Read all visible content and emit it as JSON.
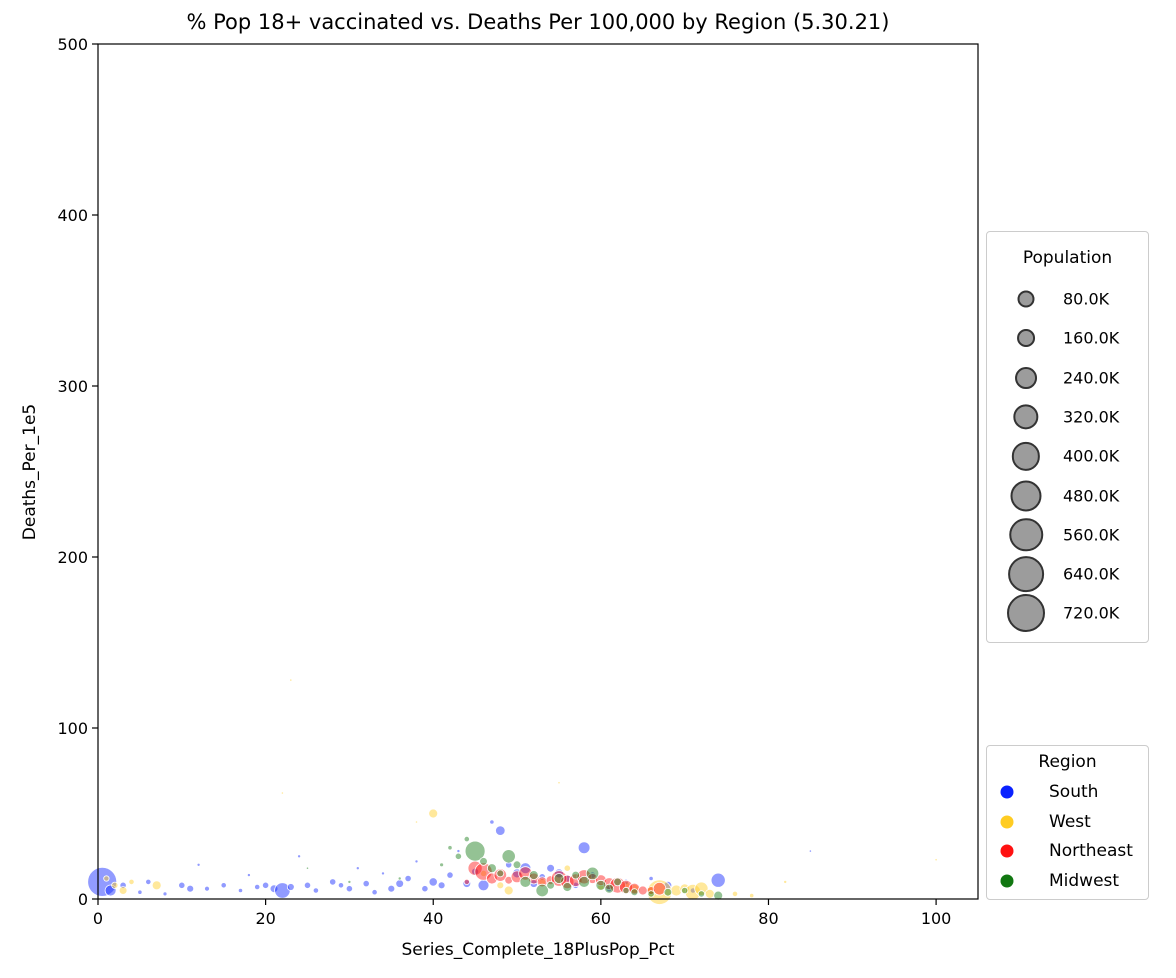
{
  "chart_data": {
    "type": "scatter",
    "title": "% Pop 18+ vaccinated vs. Deaths Per 100,000 by Region (5.30.21)",
    "xlabel": "Series_Complete_18PlusPop_Pct",
    "ylabel": "Deaths_Per_1e5",
    "xlim": [
      0,
      105
    ],
    "ylim": [
      0,
      500
    ],
    "xticks": [
      0,
      20,
      40,
      60,
      80,
      100
    ],
    "yticks": [
      0,
      100,
      200,
      300,
      400,
      500
    ],
    "grid": false,
    "size_legend": {
      "title": "Population",
      "placement": "right",
      "entries": [
        "80.0K",
        "160.0K",
        "240.0K",
        "320.0K",
        "400.0K",
        "480.0K",
        "560.0K",
        "640.0K",
        "720.0K"
      ],
      "values": [
        80000,
        160000,
        240000,
        320000,
        400000,
        480000,
        560000,
        640000,
        720000
      ]
    },
    "region_legend": {
      "title": "Region",
      "placement": "lower right outside",
      "entries": [
        {
          "name": "South",
          "color": "#0a22ff"
        },
        {
          "name": "West",
          "color": "#ffcc22"
        },
        {
          "name": "Northeast",
          "color": "#ff1111"
        },
        {
          "name": "Midwest",
          "color": "#117711"
        }
      ]
    },
    "series": [
      {
        "name": "South",
        "color": "#0a22ff",
        "points": [
          [
            0.5,
            10,
            420000
          ],
          [
            1.5,
            5,
            60000
          ],
          [
            3,
            8,
            20000
          ],
          [
            6,
            10,
            15000
          ],
          [
            8,
            3,
            8000
          ],
          [
            10,
            8,
            20000
          ],
          [
            11,
            6,
            25000
          ],
          [
            13,
            6,
            12000
          ],
          [
            15,
            8,
            15000
          ],
          [
            17,
            5,
            10000
          ],
          [
            19,
            7,
            15000
          ],
          [
            20,
            8,
            20000
          ],
          [
            21,
            6,
            30000
          ],
          [
            22,
            5,
            120000
          ],
          [
            23,
            7,
            25000
          ],
          [
            25,
            8,
            20000
          ],
          [
            26,
            5,
            15000
          ],
          [
            28,
            10,
            20000
          ],
          [
            29,
            8,
            15000
          ],
          [
            30,
            6,
            20000
          ],
          [
            32,
            9,
            20000
          ],
          [
            33,
            4,
            15000
          ],
          [
            35,
            6,
            25000
          ],
          [
            36,
            9,
            30000
          ],
          [
            37,
            12,
            20000
          ],
          [
            39,
            6,
            20000
          ],
          [
            40,
            10,
            35000
          ],
          [
            41,
            8,
            25000
          ],
          [
            42,
            14,
            20000
          ],
          [
            44,
            9,
            30000
          ],
          [
            45,
            16,
            25000
          ],
          [
            46,
            8,
            60000
          ],
          [
            47,
            45,
            10000
          ],
          [
            48,
            40,
            45000
          ],
          [
            49,
            20,
            20000
          ],
          [
            50,
            15,
            40000
          ],
          [
            51,
            18,
            60000
          ],
          [
            52,
            9,
            30000
          ],
          [
            53,
            13,
            20000
          ],
          [
            54,
            18,
            30000
          ],
          [
            55,
            15,
            40000
          ],
          [
            56,
            12,
            25000
          ],
          [
            57,
            8,
            20000
          ],
          [
            58,
            30,
            70000
          ],
          [
            59,
            14,
            20000
          ],
          [
            61,
            6,
            20000
          ],
          [
            63,
            10,
            15000
          ],
          [
            66,
            12,
            10000
          ],
          [
            68,
            8,
            30000
          ],
          [
            71,
            5,
            15000
          ],
          [
            74,
            11,
            100000
          ],
          [
            85,
            28,
            3000
          ],
          [
            5,
            4,
            10000
          ],
          [
            12,
            20,
            5000
          ],
          [
            18,
            14,
            5000
          ],
          [
            24,
            25,
            5000
          ],
          [
            31,
            18,
            5000
          ],
          [
            34,
            15,
            5000
          ],
          [
            38,
            22,
            5000
          ],
          [
            43,
            28,
            5000
          ]
        ]
      },
      {
        "name": "West",
        "color": "#ffcc22",
        "points": [
          [
            1,
            12,
            15000
          ],
          [
            2,
            8,
            20000
          ],
          [
            3,
            5,
            30000
          ],
          [
            4,
            10,
            15000
          ],
          [
            7,
            8,
            40000
          ],
          [
            40,
            50,
            40000
          ],
          [
            46,
            15,
            20000
          ],
          [
            48,
            8,
            25000
          ],
          [
            49,
            5,
            40000
          ],
          [
            53,
            10,
            25000
          ],
          [
            56,
            18,
            20000
          ],
          [
            60,
            7,
            20000
          ],
          [
            63,
            8,
            30000
          ],
          [
            64,
            6,
            40000
          ],
          [
            66,
            5,
            50000
          ],
          [
            67,
            4,
            300000
          ],
          [
            69,
            5,
            60000
          ],
          [
            70,
            6,
            45000
          ],
          [
            71,
            4,
            120000
          ],
          [
            72,
            6,
            90000
          ],
          [
            73,
            3,
            40000
          ],
          [
            76,
            3,
            15000
          ],
          [
            78,
            2,
            10000
          ],
          [
            82,
            10,
            5000
          ],
          [
            100,
            23,
            3000
          ],
          [
            23,
            128,
            3000
          ],
          [
            22,
            62,
            3000
          ],
          [
            38,
            45,
            3000
          ],
          [
            55,
            68,
            3000
          ]
        ]
      },
      {
        "name": "Northeast",
        "color": "#ff1111",
        "points": [
          [
            44,
            10,
            15000
          ],
          [
            45,
            18,
            100000
          ],
          [
            46,
            16,
            150000
          ],
          [
            47,
            12,
            60000
          ],
          [
            48,
            14,
            80000
          ],
          [
            49,
            11,
            30000
          ],
          [
            50,
            13,
            70000
          ],
          [
            51,
            15,
            90000
          ],
          [
            52,
            12,
            60000
          ],
          [
            53,
            10,
            50000
          ],
          [
            54,
            11,
            40000
          ],
          [
            55,
            12,
            120000
          ],
          [
            56,
            10,
            90000
          ],
          [
            57,
            11,
            80000
          ],
          [
            58,
            13,
            100000
          ],
          [
            59,
            12,
            50000
          ],
          [
            60,
            11,
            60000
          ],
          [
            61,
            9,
            70000
          ],
          [
            62,
            8,
            120000
          ],
          [
            63,
            7,
            90000
          ],
          [
            64,
            6,
            60000
          ],
          [
            65,
            5,
            40000
          ],
          [
            66,
            5,
            30000
          ],
          [
            67,
            6,
            80000
          ]
        ]
      },
      {
        "name": "Midwest",
        "color": "#117711",
        "points": [
          [
            25,
            18,
            3000
          ],
          [
            30,
            10,
            5000
          ],
          [
            36,
            12,
            5000
          ],
          [
            41,
            20,
            8000
          ],
          [
            42,
            30,
            10000
          ],
          [
            43,
            25,
            20000
          ],
          [
            44,
            35,
            15000
          ],
          [
            45,
            28,
            200000
          ],
          [
            46,
            22,
            30000
          ],
          [
            47,
            18,
            40000
          ],
          [
            48,
            15,
            25000
          ],
          [
            49,
            25,
            90000
          ],
          [
            50,
            20,
            30000
          ],
          [
            51,
            10,
            60000
          ],
          [
            52,
            14,
            40000
          ],
          [
            53,
            5,
            80000
          ],
          [
            54,
            8,
            30000
          ],
          [
            55,
            12,
            50000
          ],
          [
            56,
            7,
            40000
          ],
          [
            57,
            14,
            30000
          ],
          [
            58,
            10,
            60000
          ],
          [
            59,
            15,
            80000
          ],
          [
            60,
            8,
            50000
          ],
          [
            61,
            6,
            40000
          ],
          [
            62,
            10,
            30000
          ],
          [
            63,
            5,
            20000
          ],
          [
            64,
            4,
            25000
          ],
          [
            66,
            3,
            20000
          ],
          [
            68,
            4,
            30000
          ],
          [
            70,
            5,
            20000
          ],
          [
            72,
            3,
            20000
          ],
          [
            74,
            2,
            40000
          ]
        ]
      }
    ]
  }
}
